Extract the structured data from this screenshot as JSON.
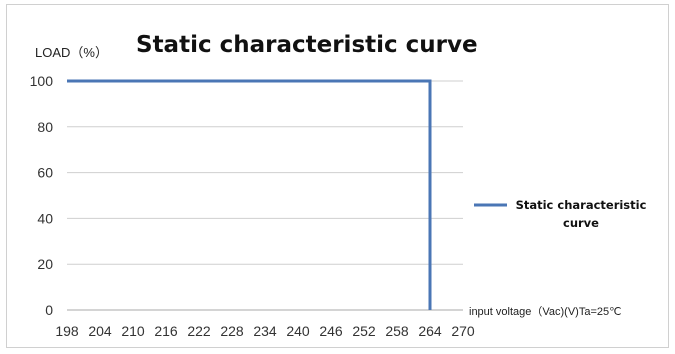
{
  "chart_data": {
    "type": "line",
    "title": "Static characteristic curve",
    "ylabel": "LOAD（%）",
    "xlabel": "input voltage（Vac)(V)Ta=25℃",
    "x_ticks": [
      "198",
      "204",
      "210",
      "216",
      "222",
      "228",
      "234",
      "240",
      "246",
      "252",
      "258",
      "264",
      "270"
    ],
    "y_ticks": [
      0,
      20,
      40,
      60,
      80,
      100
    ],
    "xlim": [
      198,
      270
    ],
    "ylim": [
      0,
      100
    ],
    "grid": true,
    "legend_position": "right",
    "legend_lines": [
      "Static characteristic",
      "curve"
    ],
    "series": [
      {
        "name": "Static characteristic curve",
        "color": "#4a76b5",
        "points": [
          [
            198,
            100
          ],
          [
            264,
            100
          ],
          [
            264,
            0
          ]
        ]
      }
    ]
  }
}
